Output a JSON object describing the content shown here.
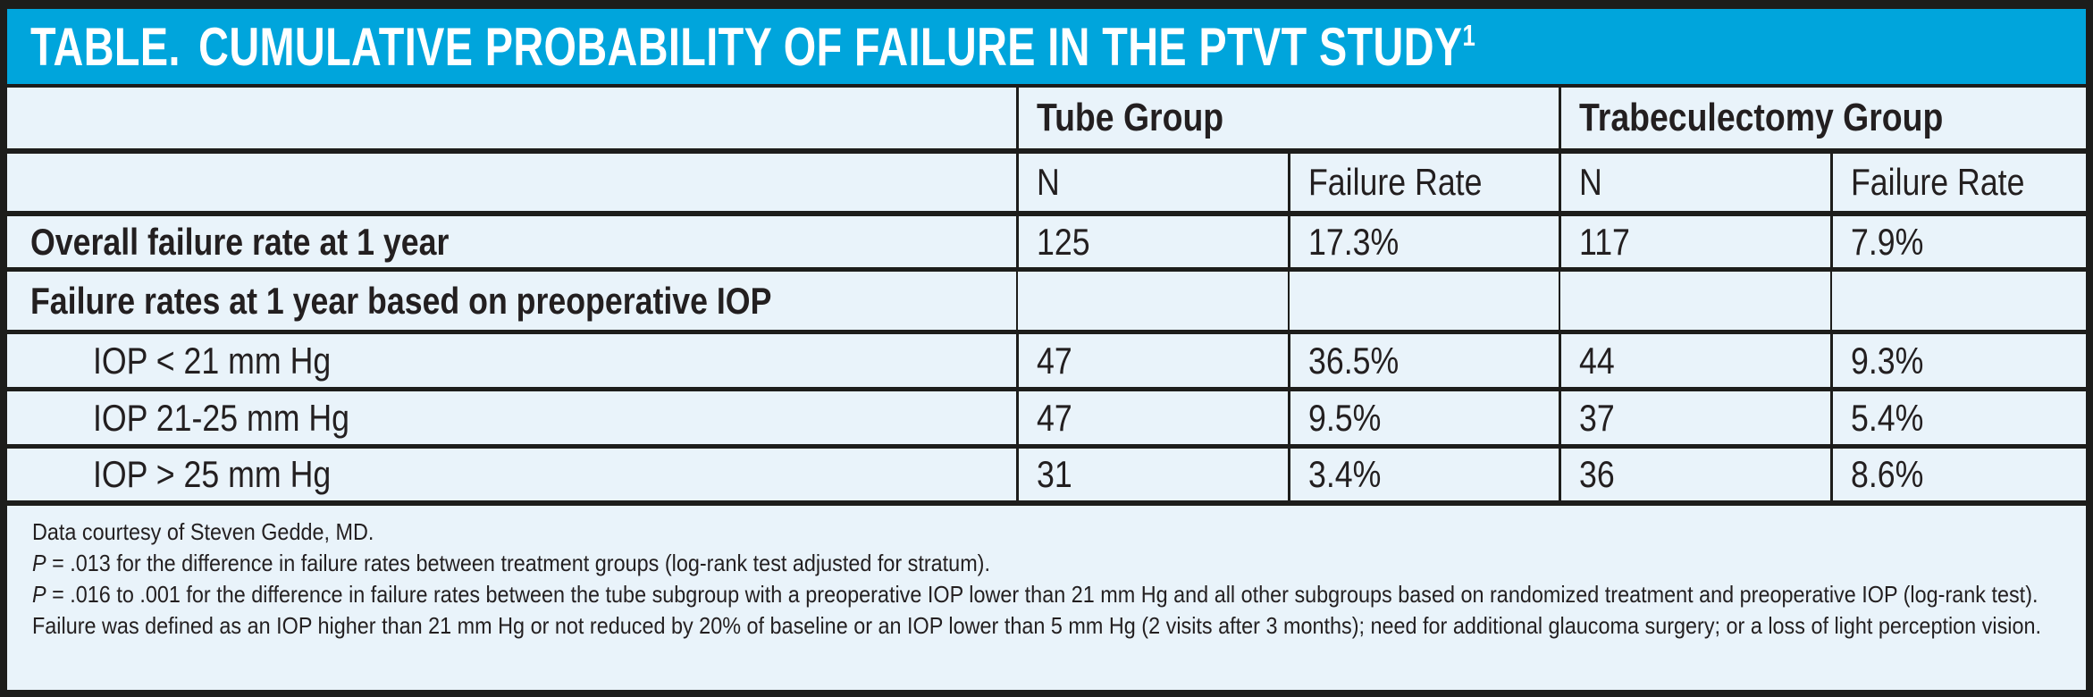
{
  "title": {
    "label": "TABLE.",
    "text": "CUMULATIVE PROBABILITY OF FAILURE IN THE PTVT STUDY",
    "superscript": "1"
  },
  "colors": {
    "accent_cyan": "#00A5DC",
    "body_background": "#E9F3FA",
    "border_black": "#1D1D1B",
    "text": "#231F20",
    "title_text": "#FFFFFF"
  },
  "header": {
    "groups": [
      {
        "label": "Tube Group"
      },
      {
        "label": "Trabeculectomy Group"
      }
    ],
    "subcolumns": [
      "N",
      "Failure Rate",
      "N",
      "Failure Rate"
    ]
  },
  "rows": [
    {
      "label": "Overall failure rate at 1 year",
      "style": "bold",
      "values": [
        "125",
        "17.3%",
        "117",
        "7.9%"
      ]
    },
    {
      "label": "Failure rates at 1 year based on preoperative IOP",
      "style": "section",
      "values": [
        "",
        "",
        "",
        ""
      ]
    },
    {
      "label": "IOP < 21 mm Hg",
      "style": "indent",
      "values": [
        "47",
        "36.5%",
        "44",
        "9.3%"
      ]
    },
    {
      "label": "IOP 21-25 mm Hg",
      "style": "indent",
      "values": [
        "47",
        "9.5%",
        "37",
        "5.4%"
      ]
    },
    {
      "label": "IOP > 25 mm Hg",
      "style": "indent",
      "values": [
        "31",
        "3.4%",
        "36",
        "8.6%"
      ]
    }
  ],
  "footnotes": [
    {
      "italic": "",
      "text": "Data courtesy of Steven Gedde, MD."
    },
    {
      "italic": "P",
      "text": " = .013 for the difference in failure rates between treatment groups (log-rank test adjusted for stratum)."
    },
    {
      "italic": "P",
      "text": " = .016 to .001 for the difference in failure rates between the tube subgroup with a preoperative IOP lower than 21 mm Hg and all other subgroups based on randomized treatment and preoperative IOP (log-rank test)."
    },
    {
      "italic": "",
      "text": "Failure was defined as an IOP higher than 21 mm Hg or not reduced by 20% of baseline or an IOP lower than 5 mm Hg (2 visits after 3 months); need for additional glaucoma surgery; or a loss of light perception vision."
    }
  ],
  "chart_data": {
    "type": "table",
    "title": "TABLE. CUMULATIVE PROBABILITY OF FAILURE IN THE PTVT STUDY",
    "columns": [
      "",
      "Tube Group N",
      "Tube Group Failure Rate",
      "Trabeculectomy Group N",
      "Trabeculectomy Group Failure Rate"
    ],
    "rows": [
      [
        "Overall failure rate at 1 year",
        125,
        "17.3%",
        117,
        "7.9%"
      ],
      [
        "Failure rates at 1 year based on preoperative IOP",
        null,
        null,
        null,
        null
      ],
      [
        "IOP < 21 mm Hg",
        47,
        "36.5%",
        44,
        "9.3%"
      ],
      [
        "IOP 21-25 mm Hg",
        47,
        "9.5%",
        37,
        "5.4%"
      ],
      [
        "IOP > 25 mm Hg",
        31,
        "3.4%",
        36,
        "8.6%"
      ]
    ]
  }
}
